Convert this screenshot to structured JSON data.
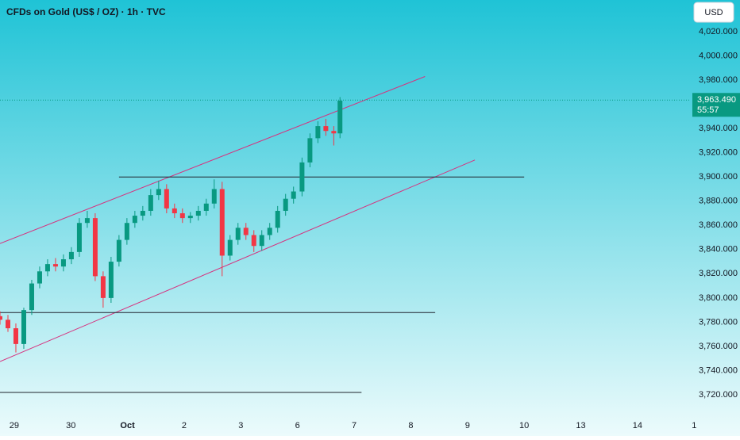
{
  "chart_data": {
    "type": "candlestick",
    "title": "CFDs on Gold (US$ / OZ) · 1h · TVC",
    "currency": "USD",
    "up_color": "#089981",
    "down_color": "#f23645",
    "x": [
      -0.25,
      -0.11,
      0.03,
      0.17,
      0.31,
      0.45,
      0.59,
      0.73,
      0.87,
      1.01,
      1.15,
      1.29,
      1.43,
      1.57,
      1.71,
      1.85,
      1.99,
      2.13,
      2.27,
      2.41,
      2.55,
      2.69,
      2.83,
      2.97,
      3.11,
      3.25,
      3.39,
      3.53,
      3.67,
      3.81,
      3.95,
      4.09,
      4.23,
      4.37,
      4.51,
      4.65,
      4.79,
      4.93,
      5.08,
      5.22,
      5.36,
      5.5,
      5.64,
      5.75
    ],
    "open": [
      3785,
      3782,
      3775,
      3762,
      3790,
      3812,
      3822,
      3828,
      3826,
      3832,
      3838,
      3862,
      3866,
      3818,
      3800,
      3830,
      3848,
      3862,
      3868,
      3872,
      3885,
      3890,
      3874,
      3870,
      3866,
      3868,
      3872,
      3878,
      3890,
      3835,
      3848,
      3858,
      3852,
      3843,
      3852,
      3858,
      3872,
      3882,
      3888,
      3912,
      3932,
      3942,
      3938,
      3936
    ],
    "high": [
      3789,
      3786,
      3779,
      3792,
      3815,
      3826,
      3832,
      3833,
      3836,
      3842,
      3866,
      3872,
      3870,
      3822,
      3834,
      3852,
      3866,
      3872,
      3876,
      3890,
      3897,
      3894,
      3878,
      3874,
      3871,
      3876,
      3882,
      3898,
      3896,
      3852,
      3862,
      3862,
      3856,
      3856,
      3862,
      3876,
      3886,
      3892,
      3916,
      3936,
      3946,
      3948,
      3942,
      3966
    ],
    "low": [
      3778,
      3772,
      3755,
      3758,
      3786,
      3808,
      3818,
      3822,
      3822,
      3828,
      3834,
      3858,
      3814,
      3792,
      3796,
      3826,
      3844,
      3858,
      3864,
      3868,
      3881,
      3870,
      3866,
      3862,
      3862,
      3864,
      3868,
      3874,
      3818,
      3831,
      3844,
      3848,
      3838,
      3839,
      3848,
      3854,
      3868,
      3878,
      3884,
      3908,
      3928,
      3934,
      3926,
      3932
    ],
    "close": [
      3782,
      3775,
      3762,
      3790,
      3812,
      3822,
      3828,
      3826,
      3832,
      3838,
      3862,
      3866,
      3818,
      3800,
      3830,
      3848,
      3862,
      3868,
      3872,
      3885,
      3890,
      3874,
      3870,
      3866,
      3868,
      3872,
      3878,
      3890,
      3835,
      3848,
      3858,
      3852,
      3843,
      3852,
      3858,
      3872,
      3882,
      3888,
      3912,
      3932,
      3942,
      3938,
      3936,
      3963
    ],
    "lines": [
      {
        "x": [
          -0.25,
          7.25
        ],
        "y": [
          3845,
          3983
        ],
        "color": "#d6337f"
      },
      {
        "x": [
          -0.25,
          8.13
        ],
        "y": [
          3747.5,
          3914
        ],
        "color": "#d6337f"
      },
      {
        "x": [
          1.85,
          9.0
        ],
        "y": [
          3900,
          3900
        ],
        "color": "#1e222d"
      },
      {
        "x": [
          -0.25,
          7.43
        ],
        "y": [
          3788,
          3788
        ],
        "color": "#1e222d"
      },
      {
        "x": [
          -0.25,
          6.13
        ],
        "y": [
          3722,
          3722
        ],
        "color": "#1e222d"
      }
    ],
    "last_price": {
      "value": 3963.49,
      "label": "3,963.490"
    },
    "countdown": "55:57",
    "xlim": [
      -0.25,
      11.94
    ],
    "ylim": [
      3705.6,
      4046.2
    ],
    "xticks": [
      {
        "value": 0,
        "label": "29"
      },
      {
        "value": 1,
        "label": "30"
      },
      {
        "value": 2,
        "label": "Oct"
      },
      {
        "value": 3,
        "label": "2"
      },
      {
        "value": 4,
        "label": "3"
      },
      {
        "value": 5,
        "label": "6"
      },
      {
        "value": 6,
        "label": "7"
      },
      {
        "value": 7,
        "label": "8"
      },
      {
        "value": 8,
        "label": "9"
      },
      {
        "value": 9,
        "label": "10"
      },
      {
        "value": 10,
        "label": "13"
      },
      {
        "value": 11,
        "label": "14"
      },
      {
        "value": 12,
        "label": "1"
      }
    ],
    "yticks": [
      {
        "value": 3720,
        "label": "3,720.000"
      },
      {
        "value": 3740,
        "label": "3,740.000"
      },
      {
        "value": 3760,
        "label": "3,760.000"
      },
      {
        "value": 3780,
        "label": "3,780.000"
      },
      {
        "value": 3800,
        "label": "3,800.000"
      },
      {
        "value": 3820,
        "label": "3,820.000"
      },
      {
        "value": 3840,
        "label": "3,840.000"
      },
      {
        "value": 3860,
        "label": "3,860.000"
      },
      {
        "value": 3880,
        "label": "3,880.000"
      },
      {
        "value": 3900,
        "label": "3,900.000"
      },
      {
        "value": 3920,
        "label": "3,920.000"
      },
      {
        "value": 3940,
        "label": "3,940.000"
      },
      {
        "value": 3980,
        "label": "3,980.000"
      },
      {
        "value": 4000,
        "label": "4,000.000"
      },
      {
        "value": 4020,
        "label": "4,020.000"
      }
    ]
  }
}
